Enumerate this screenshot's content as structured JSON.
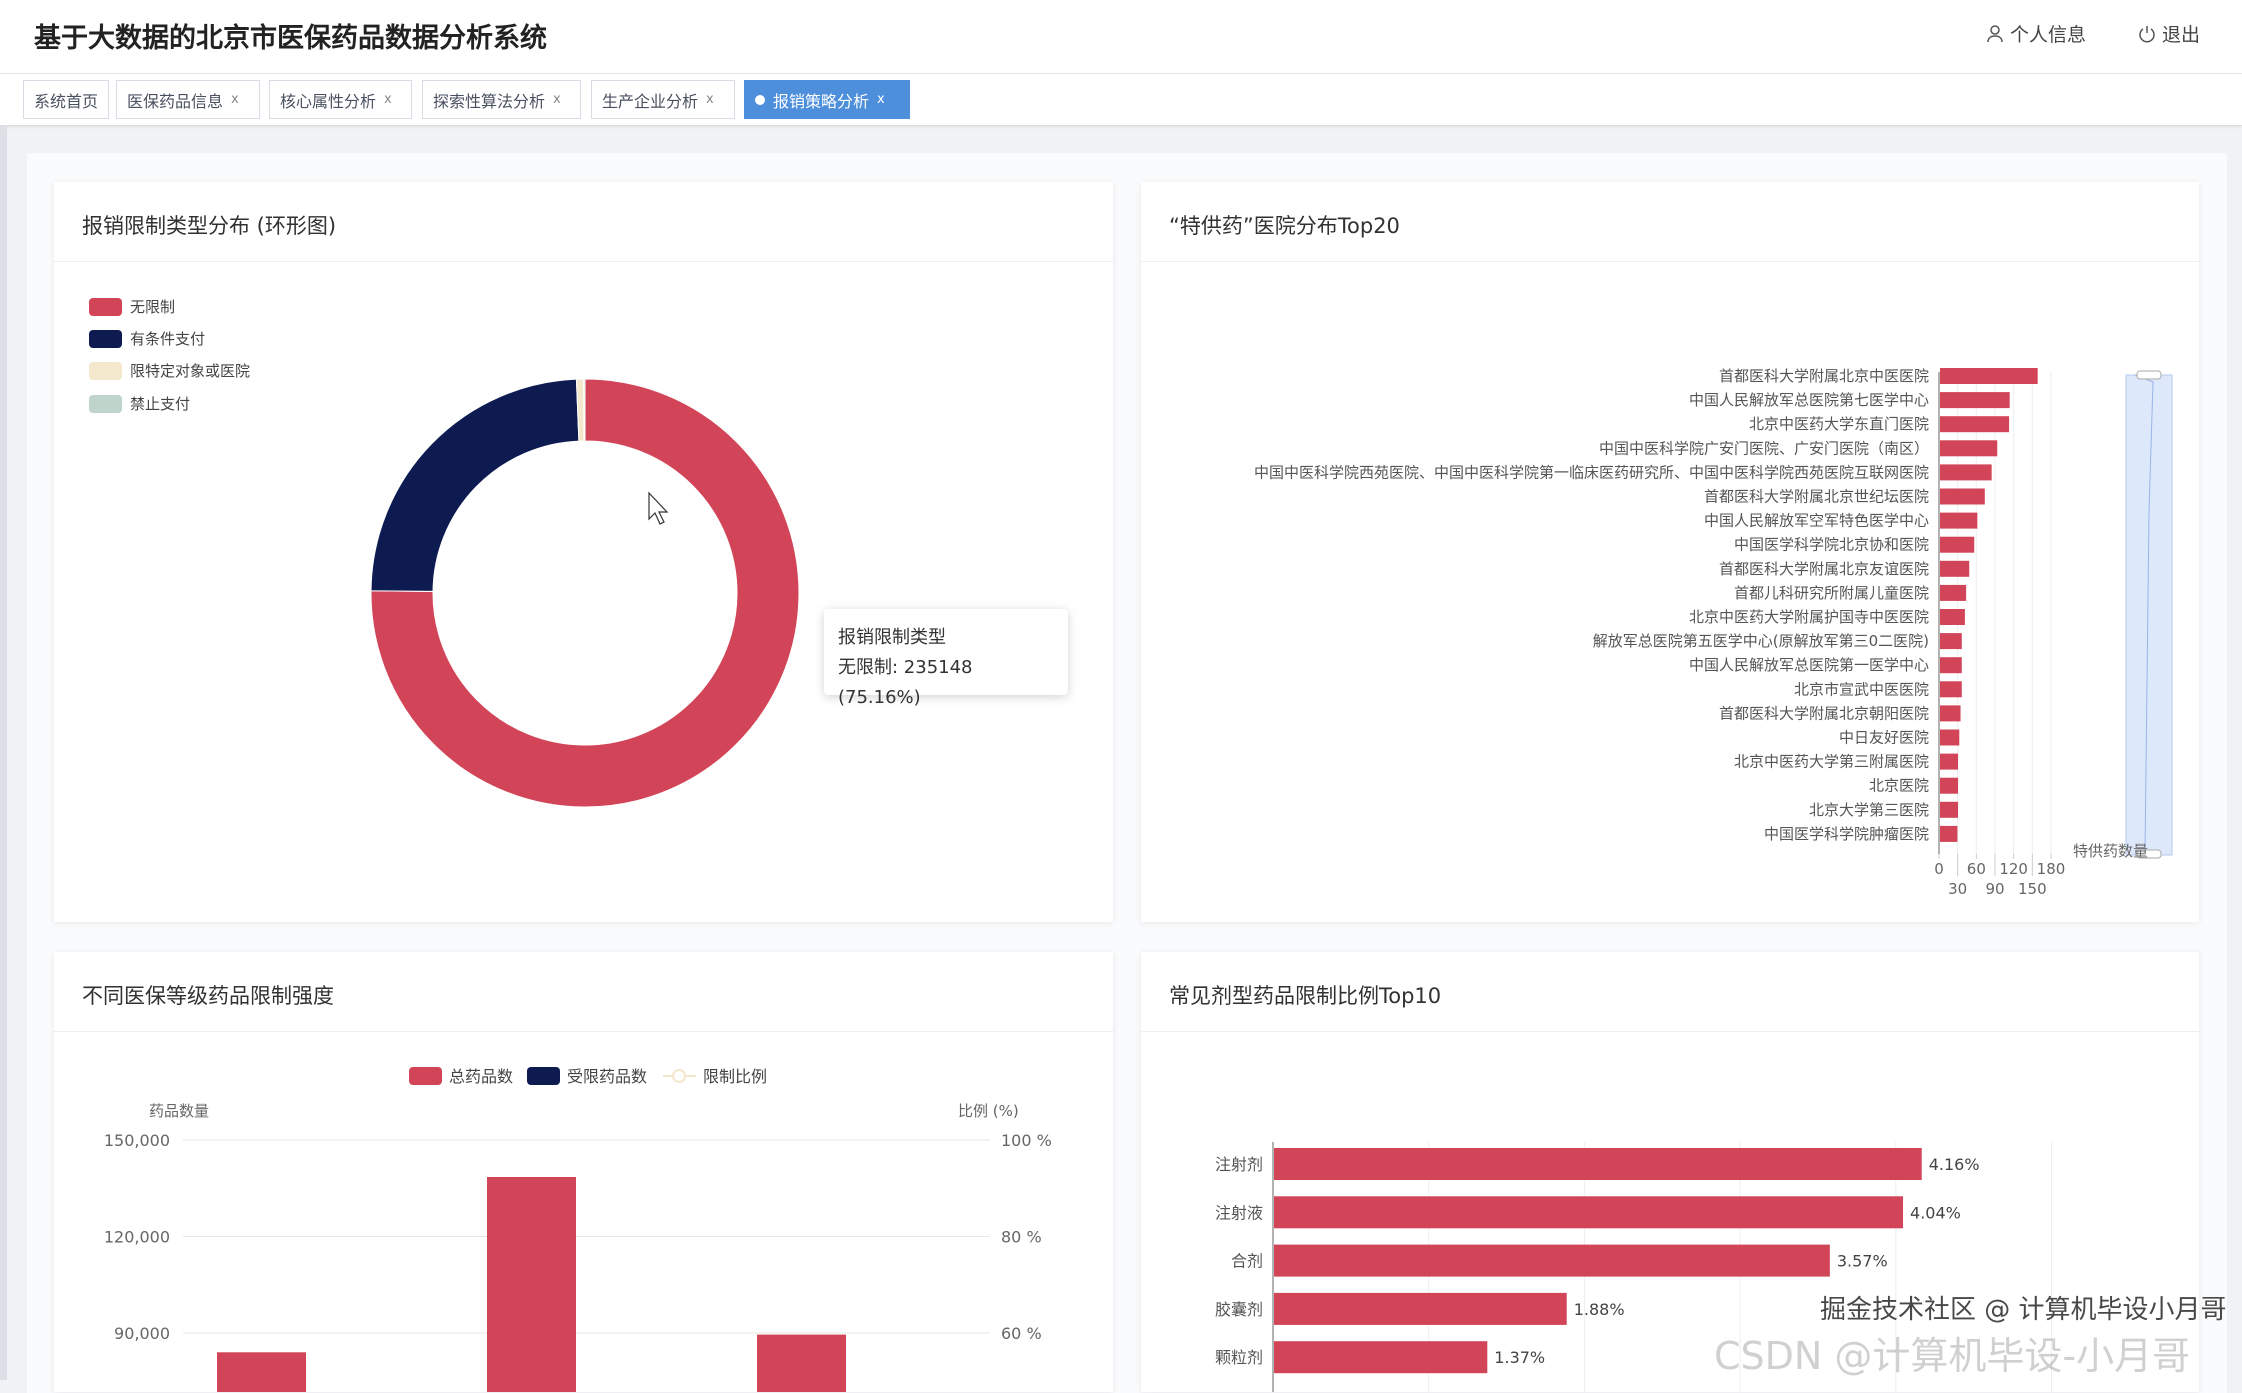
{
  "header": {
    "title": "基于大数据的北京市医保药品数据分析系统",
    "profile": "个人信息",
    "logout": "退出",
    "profile_icon": "user-icon",
    "logout_icon": "power-icon"
  },
  "tabs": [
    {
      "label": "系统首页",
      "closable": false
    },
    {
      "label": "医保药品信息",
      "closable": true
    },
    {
      "label": "核心属性分析",
      "closable": true
    },
    {
      "label": "探索性算法分析",
      "closable": true
    },
    {
      "label": "生产企业分析",
      "closable": true
    },
    {
      "label": "报销策略分析",
      "closable": true,
      "active": true
    }
  ],
  "tab_close": "x",
  "colors": {
    "red": "#d24457",
    "navy": "#0e1b50",
    "cream": "#f3e8cb",
    "sage": "#bfd4cb",
    "accent": "#4e8fdc"
  },
  "cards": {
    "donut": "报销限制类型分布 (环形图)",
    "hospital": "“特供药”医院分布Top20",
    "grade": "不同医保等级药品限制强度",
    "form": "常见剂型药品限制比例Top10"
  },
  "tooltip": {
    "title": "报销限制类型",
    "line": "无限制: 235148 (75.16%)"
  },
  "watermark": {
    "line1": "掘金技术社区 @ 计算机毕设小月哥",
    "line2": "CSDN @计算机毕设-小月哥"
  },
  "chart_data": [
    {
      "type": "pie",
      "variant": "donut",
      "title": "报销限制类型分布 (环形图)",
      "legend_position": "top-left",
      "labels": [
        "无限制",
        "有条件支付",
        "限特定对象或医院",
        "禁止支付"
      ],
      "values": [
        235148,
        75700,
        1700,
        300
      ],
      "colors": [
        "#d24457",
        "#0e1b50",
        "#f3e8cb",
        "#bfd4cb"
      ]
    },
    {
      "type": "bar",
      "orientation": "horizontal",
      "title": "“特供药”医院分布Top20",
      "xlabel": "特供药数量",
      "xlim": [
        0,
        180
      ],
      "xticks": [
        "0",
        "30",
        "60",
        "90",
        "120",
        "150",
        "180"
      ],
      "categories": [
        "首都医科大学附属北京中医医院",
        "中国人民解放军总医院第七医学中心",
        "北京中医药大学东直门医院",
        "中国中医科学院广安门医院、广安门医院（南区）",
        "中国中医科学院西苑医院、中国中医科学院第一临床医药研究所、中国中医科学院西苑医院互联网医院",
        "首都医科大学附属北京世纪坛医院",
        "中国人民解放军空军特色医学中心",
        "中国医学科学院北京协和医院",
        "首都医科大学附属北京友谊医院",
        "首都儿科研究所附属儿童医院",
        "北京中医药大学附属护国寺中医医院",
        "解放军总医院第五医学中心(原解放军第三0二医院)",
        "中国人民解放军总医院第一医学中心",
        "北京市宣武中医医院",
        "首都医科大学附属北京朝阳医院",
        "中日友好医院",
        "北京中医药大学第三附属医院",
        "北京医院",
        "北京大学第三医院",
        "中国医学科学院肿瘤医院"
      ],
      "values": [
        157,
        112,
        111,
        92,
        83,
        72,
        60,
        55,
        47,
        42,
        40,
        35,
        35,
        35,
        33,
        31,
        29,
        29,
        29,
        28
      ],
      "data_zoom": true
    },
    {
      "type": "bar",
      "title": "不同医保等级药品限制强度",
      "legend_position": "top",
      "legend": [
        {
          "name": "总药品数",
          "color": "#d24457"
        },
        {
          "name": "受限药品数",
          "color": "#0e1b50"
        },
        {
          "name": "限制比例",
          "color": "#f3e8cb"
        }
      ],
      "ylabel": "药品数量",
      "ylabel_right": "比例 (%)",
      "yticks": [
        "150,000",
        "120,000",
        "90,000"
      ],
      "yticks_right": [
        "100 %",
        "80 %",
        "60 %"
      ],
      "ylim_visible": [
        90000,
        150000
      ],
      "series": [
        {
          "name": "总药品数",
          "values": [
            84000,
            138500,
            89500
          ]
        }
      ]
    },
    {
      "type": "bar",
      "orientation": "horizontal",
      "title": "常见剂型药品限制比例Top10",
      "xlim": [
        0,
        5
      ],
      "categories": [
        "注射剂",
        "注射液",
        "合剂",
        "胶囊剂",
        "颗粒剂"
      ],
      "values": [
        4.16,
        4.04,
        3.57,
        1.88,
        1.37
      ],
      "labels": [
        "4.16%",
        "4.04%",
        "3.57%",
        "1.88%",
        "1.37%"
      ]
    }
  ]
}
